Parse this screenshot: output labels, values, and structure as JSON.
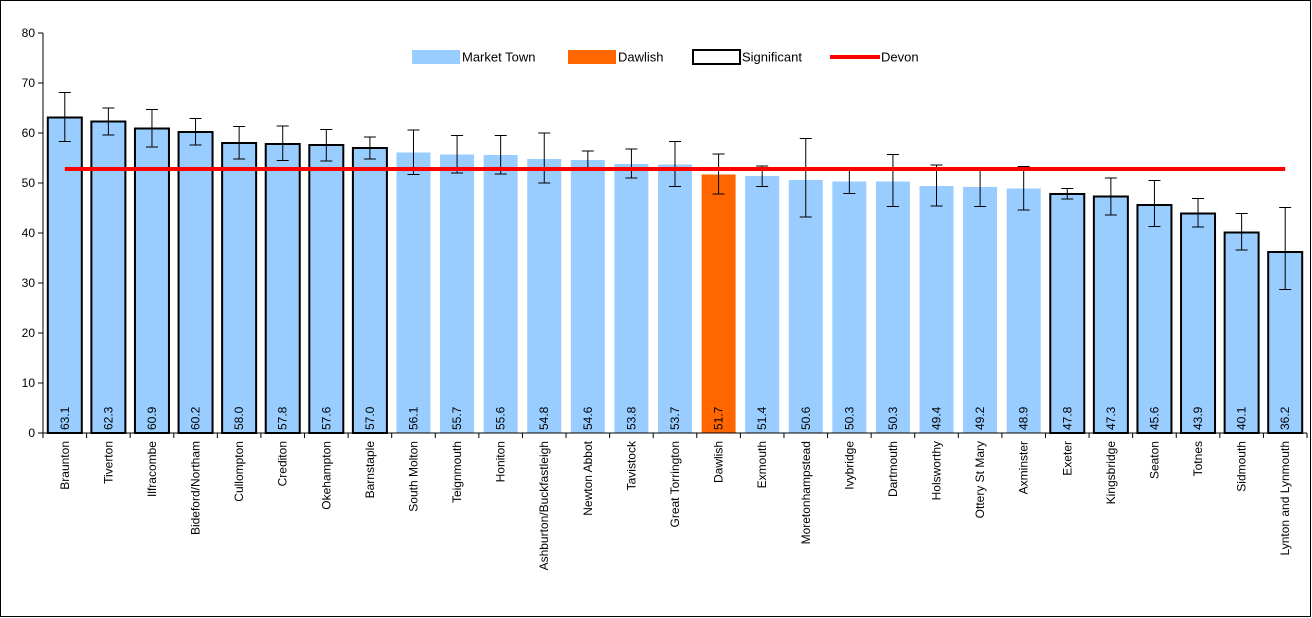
{
  "chart_data": {
    "type": "bar",
    "categories": [
      "Braunton",
      "Tiverton",
      "Ilfracombe",
      "Bideford/Northam",
      "Cullompton",
      "Crediton",
      "Okehampton",
      "Barnstaple",
      "South Molton",
      "Teignmouth",
      "Honiton",
      "Ashburton/Buckfastleigh",
      "Newton Abbot",
      "Tavistock",
      "Great Torrington",
      "Dawlish",
      "Exmouth",
      "Moretonhampstead",
      "Ivybridge",
      "Dartmouth",
      "Holsworthy",
      "Ottery St Mary",
      "Axminster",
      "Exeter",
      "Kingsbridge",
      "Seaton",
      "Totnes",
      "Sidmouth",
      "Lynton and Lynmouth"
    ],
    "values": [
      63.1,
      62.3,
      60.9,
      60.2,
      58.0,
      57.8,
      57.6,
      57.0,
      56.1,
      55.7,
      55.6,
      54.8,
      54.6,
      53.8,
      53.7,
      51.7,
      51.4,
      50.6,
      50.3,
      50.3,
      49.4,
      49.2,
      48.9,
      47.8,
      47.3,
      45.6,
      43.9,
      40.1,
      36.2
    ],
    "value_labels": [
      "63.1",
      "62.3",
      "60.9",
      "60.2",
      "58.0",
      "57.8",
      "57.6",
      "57.0",
      "56.1",
      "55.7",
      "55.6",
      "54.8",
      "54.6",
      "53.8",
      "53.7",
      "51.7",
      "51.4",
      "50.6",
      "50.3",
      "50.3",
      "49.4",
      "49.2",
      "48.9",
      "47.8",
      "47.3",
      "45.6",
      "43.9",
      "40.1",
      "36.2"
    ],
    "error_low": [
      58.3,
      59.6,
      57.2,
      57.6,
      54.8,
      54.5,
      54.4,
      54.8,
      51.7,
      52.0,
      51.8,
      50.0,
      52.8,
      51.0,
      49.3,
      47.8,
      49.3,
      43.2,
      47.9,
      45.3,
      45.4,
      45.3,
      44.6,
      46.8,
      43.6,
      41.3,
      41.2,
      36.6,
      28.7
    ],
    "error_high": [
      68.1,
      65.0,
      64.7,
      62.9,
      61.3,
      61.4,
      60.7,
      59.2,
      60.6,
      59.5,
      59.5,
      60.0,
      56.4,
      56.8,
      58.3,
      55.8,
      53.4,
      58.9,
      52.9,
      55.7,
      53.6,
      53.1,
      53.3,
      48.9,
      51.0,
      50.5,
      46.9,
      43.9,
      45.1
    ],
    "series_type": [
      "significant",
      "significant",
      "significant",
      "significant",
      "significant",
      "significant",
      "significant",
      "significant",
      "market",
      "market",
      "market",
      "market",
      "market",
      "market",
      "market",
      "dawlish",
      "market",
      "market",
      "market",
      "market",
      "market",
      "market",
      "market",
      "significant",
      "significant",
      "significant",
      "significant",
      "significant",
      "significant"
    ],
    "devon_value": 52.8,
    "ylim": [
      0,
      80
    ],
    "yticks": [
      "0",
      "10",
      "20",
      "30",
      "40",
      "50",
      "60",
      "70",
      "80"
    ],
    "legend": {
      "position": "top-center",
      "entries": [
        {
          "key": "market",
          "label": "Market Town"
        },
        {
          "key": "dawlish",
          "label": "Dawlish"
        },
        {
          "key": "significant",
          "label": "Significant"
        },
        {
          "key": "devon",
          "label": "Devon"
        }
      ]
    },
    "colors": {
      "market": "#99CCFF",
      "dawlish": "#FF6600",
      "significant_border": "#000000",
      "devon": "#FF0000",
      "error_bar": "#000000",
      "axis": "#000000"
    },
    "grid": false,
    "title": "",
    "xlabel": "",
    "ylabel": ""
  }
}
